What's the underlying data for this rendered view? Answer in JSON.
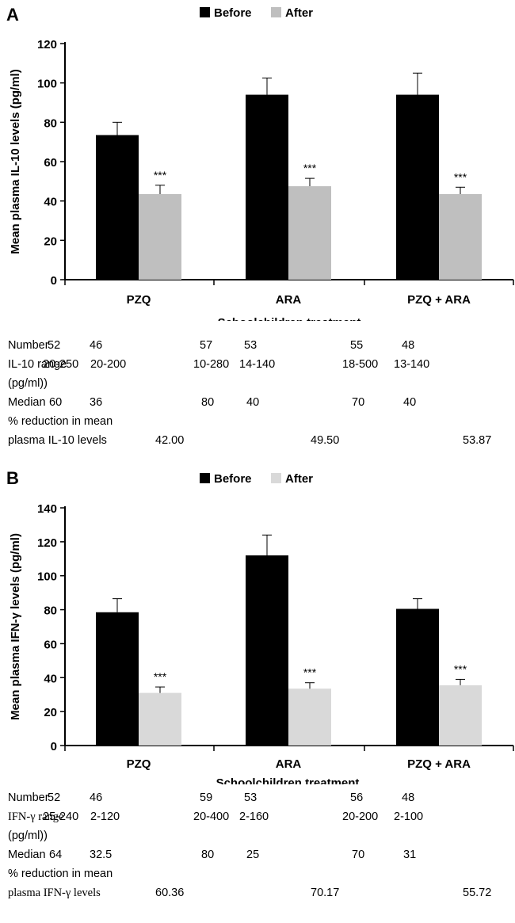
{
  "chart_data": [
    {
      "type": "bar",
      "panel_label": "A",
      "categories": [
        "PZQ",
        "ARA",
        "PZQ + ARA"
      ],
      "xlabel": "Schoolchildren treatment",
      "ylabel": "Mean plasma IL-10 levels (pg/ml)",
      "ylim": [
        0,
        120
      ],
      "yticks": [
        "0",
        "20",
        "40",
        "60",
        "80",
        "100",
        "120"
      ],
      "legend_position": "top-center",
      "series": [
        {
          "name": "Before",
          "color": "#000000",
          "values": [
            73.5,
            94,
            94
          ],
          "errors": [
            6.5,
            8.5,
            11
          ]
        },
        {
          "name": "After",
          "color": "#bfbfbf",
          "values": [
            43.5,
            47.5,
            43.5
          ],
          "errors": [
            4.5,
            4,
            3.5
          ]
        }
      ],
      "significance": [
        "***",
        "***",
        "***"
      ],
      "table": {
        "number_label": "Number",
        "number": [
          [
            "52",
            "46"
          ],
          [
            "57",
            "53"
          ],
          [
            "55",
            "48"
          ]
        ],
        "range_label_1": "IL-10 range",
        "range_label_2": "(pg/ml))",
        "range": [
          [
            "20-250",
            "20-200"
          ],
          [
            "10-280",
            "14-140"
          ],
          [
            "18-500",
            "13-140"
          ]
        ],
        "median_label": "Median",
        "median": [
          [
            "60",
            "36"
          ],
          [
            "80",
            "40"
          ],
          [
            "70",
            "40"
          ]
        ],
        "reduction_label_1": "% reduction in mean",
        "reduction_label_2": "plasma IL-10 levels",
        "reduction": [
          "42.00",
          "49.50",
          "53.87"
        ]
      }
    },
    {
      "type": "bar",
      "panel_label": "B",
      "categories": [
        "PZQ",
        "ARA",
        "PZQ + ARA"
      ],
      "xlabel": "Schoolchildren treatment",
      "ylabel": "Mean plasma IFN-γ levels (pg/ml)",
      "ylim": [
        0,
        140
      ],
      "yticks": [
        "0",
        "20",
        "40",
        "60",
        "80",
        "100",
        "120",
        "140"
      ],
      "legend_position": "top-center",
      "series": [
        {
          "name": "Before",
          "color": "#000000",
          "values": [
            78.5,
            112,
            80.5
          ],
          "errors": [
            8,
            12,
            6
          ]
        },
        {
          "name": "After",
          "color": "#d9d9d9",
          "values": [
            31,
            33.5,
            35.5
          ],
          "errors": [
            3.5,
            3.5,
            3.5
          ]
        }
      ],
      "significance": [
        "***",
        "***",
        "***"
      ],
      "table": {
        "number_label": "Number",
        "number": [
          [
            "52",
            "46"
          ],
          [
            "59",
            "53"
          ],
          [
            "56",
            "48"
          ]
        ],
        "range_label_1": "IFN-γ range",
        "range_label_2": "(pg/ml))",
        "range": [
          [
            "25-240",
            "2-120"
          ],
          [
            "20-400",
            "2-160"
          ],
          [
            "20-200",
            "2-100"
          ]
        ],
        "median_label": "Median",
        "median": [
          [
            "64",
            "32.5"
          ],
          [
            "80",
            "25"
          ],
          [
            "70",
            "31"
          ]
        ],
        "reduction_label_1": "% reduction in mean",
        "reduction_label_2": "plasma IFN-γ levels",
        "reduction": [
          "60.36",
          "70.17",
          "55.72"
        ]
      }
    }
  ]
}
